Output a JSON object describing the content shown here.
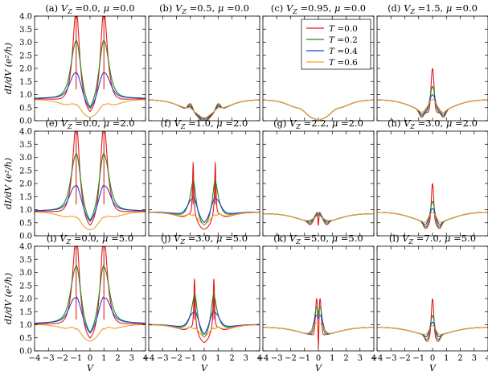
{
  "chart_data": {
    "type": "line",
    "xlabel": "V",
    "ylabel": "dI/dV (e²/h)",
    "xlim": [
      -4,
      4
    ],
    "ylim": [
      0,
      4
    ],
    "xticks": [
      "−4",
      "−3",
      "−2",
      "−1",
      "0",
      "1",
      "2",
      "3",
      "4"
    ],
    "yticks": [
      "0.0",
      "0.5",
      "1.0",
      "1.5",
      "2.0",
      "2.5",
      "3.0",
      "3.5",
      "4.0"
    ],
    "series_colors": {
      "T=0.0": "#e41a1c",
      "T=0.2": "#1f8a1f",
      "T=0.4": "#1f3fd6",
      "T=0.6": "#f0a020"
    },
    "legend": {
      "placement": "upper-right of panel (c)",
      "entries": [
        "T =0.0",
        "T =0.2",
        "T =0.4",
        "T =0.6"
      ]
    },
    "panels": [
      {
        "id": "a",
        "title": "(a) V_Z =0.0, μ =0.0",
        "kind": "gap",
        "g0": 0.08,
        "gmax": 0.8,
        "D": 1.0,
        "wd": 0.45,
        "ep": 0.3,
        "mx": 0.0
      },
      {
        "id": "b",
        "title": "(b) V_Z =0.5, μ =0.0",
        "kind": "split",
        "g0": 0.2,
        "gmax": 0.8,
        "D": 1.0,
        "wd": 0.45,
        "ep": 0.15,
        "mx": 0.0
      },
      {
        "id": "c",
        "title": "(c) V_Z =0.95, μ =0.0",
        "kind": "dip",
        "g0": 0.05,
        "gmax": 0.8,
        "D": 0.15,
        "wd": 0.3,
        "ep": 0.1,
        "mx": 0.0
      },
      {
        "id": "d",
        "title": "(d) V_Z =1.5, μ =0.0",
        "kind": "zbp",
        "g0": 0.3,
        "gmax": 0.8,
        "D": 0.8,
        "wd": 0.6,
        "ep": 0.15,
        "mx": 0.0
      },
      {
        "id": "e",
        "title": "(e) V_Z =0.0, μ =2.0",
        "kind": "gap",
        "g0": 0.2,
        "gmax": 0.9,
        "D": 1.0,
        "wd": 0.4,
        "ep": 0.3,
        "mx": 0.0
      },
      {
        "id": "f",
        "title": "(f) V_Z =1.0, μ =2.0",
        "kind": "gap",
        "g0": 0.5,
        "gmax": 0.9,
        "D": 0.8,
        "wd": 0.3,
        "ep": 0.06,
        "mx": 2.1
      },
      {
        "id": "g",
        "title": "(g) V_Z =2.2, μ =2.0",
        "kind": "small",
        "g0": 0.5,
        "gmax": 0.85,
        "D": 0.2,
        "wd": 0.6,
        "ep": 0.1,
        "mx": 0.0
      },
      {
        "id": "h",
        "title": "(h) V_Z =3.0, μ =2.0",
        "kind": "zbp",
        "g0": 0.5,
        "gmax": 0.9,
        "D": 0.5,
        "wd": 0.4,
        "ep": 0.12,
        "mx": 0.0
      },
      {
        "id": "i",
        "title": "(i) V_Z =0.0, μ =5.0",
        "kind": "gap",
        "g0": 0.4,
        "gmax": 1.0,
        "D": 1.0,
        "wd": 0.3,
        "ep": 0.3,
        "mx": 0.0
      },
      {
        "id": "j",
        "title": "(j) V_Z =3.0, μ =5.0",
        "kind": "gap",
        "g0": 0.6,
        "gmax": 1.0,
        "D": 0.7,
        "wd": 0.3,
        "ep": 0.06,
        "mx": 2.1
      },
      {
        "id": "k",
        "title": "(k) V_Z =5.0, μ =5.0",
        "kind": "zsplit",
        "g0": 0.6,
        "gmax": 0.9,
        "D": 0.1,
        "wd": 0.5,
        "ep": 0.05,
        "mx": 0.0
      },
      {
        "id": "l",
        "title": "(l) V_Z =7.0, μ =5.0",
        "kind": "zbp",
        "g0": 0.6,
        "gmax": 0.9,
        "D": 0.4,
        "wd": 0.35,
        "ep": 0.12,
        "mx": 0.0
      }
    ]
  }
}
